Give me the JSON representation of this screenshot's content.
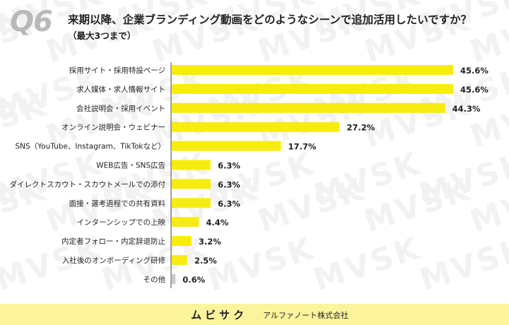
{
  "question": {
    "number": "Q6",
    "title": "来期以降、企業ブランディング動画をどのようなシーンで追加活用したいですか？",
    "note": "（最大3つまで）"
  },
  "watermark": {
    "text": "MVSK"
  },
  "footer": {
    "brand": "ムビサク",
    "company": "アルファノート株式会社"
  },
  "colors": {
    "bar": "#f7ec12",
    "bar_small": "#c9c9c9",
    "background": "#ffffff",
    "watermark": "#f2f2f2",
    "footer": "#fbf49c"
  },
  "chart_data": {
    "type": "bar",
    "orientation": "horizontal",
    "title": "",
    "xlabel": "",
    "ylabel": "",
    "grid": false,
    "legend": "none",
    "categories": [
      "採用サイト・採用特設ページ",
      "求人媒体・求人情報サイト",
      "会社説明会・採用イベント",
      "オンライン説明会・ウェビナー",
      "SNS（YouTube、Instagram、TikTokなど）",
      "WEB広告・SNS広告",
      "ダイレクトスカウト・スカウトメールでの添付",
      "面接・選考過程での共有資料",
      "インターンシップでの上映",
      "内定者フォロー・内定辞退防止",
      "入社後のオンボーディング研修",
      "その他"
    ],
    "values": [
      45.6,
      45.6,
      44.3,
      27.2,
      17.7,
      6.3,
      6.3,
      6.3,
      4.4,
      3.2,
      2.5,
      0.6
    ],
    "value_labels": [
      "45.6%",
      "45.6%",
      "44.3%",
      "27.2%",
      "17.7%",
      "6.3%",
      "6.3%",
      "6.3%",
      "4.4%",
      "3.2%",
      "2.5%",
      "0.6%"
    ],
    "xlim": [
      0,
      45.6
    ]
  }
}
